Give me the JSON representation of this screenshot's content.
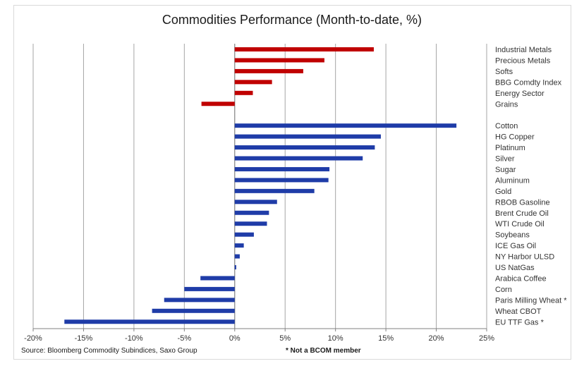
{
  "chart_data": {
    "type": "bar",
    "orientation": "horizontal",
    "title": "Commodities Performance (Month-to-date, %)",
    "xlim": [
      -20,
      25
    ],
    "x_ticks": [
      -20,
      -15,
      -10,
      -5,
      0,
      5,
      10,
      15,
      20,
      25
    ],
    "x_tick_labels": [
      "-20%",
      "-15%",
      "-10%",
      "-5%",
      "0%",
      "5%",
      "10%",
      "15%",
      "20%",
      "25%"
    ],
    "grid": "vertical",
    "groups": [
      {
        "color": "#c00000",
        "categories": [
          "Industrial Metals",
          "Precious Metals",
          "Softs",
          "BBG Comdty Index",
          "Energy Sector",
          "Grains"
        ],
        "values": [
          13.8,
          8.9,
          6.8,
          3.7,
          1.8,
          -3.3
        ]
      },
      {
        "color": "#1f3ca8",
        "categories": [
          "Cotton",
          "HG Copper",
          "Platinum",
          "Silver",
          "Sugar",
          "Aluminum",
          "Gold",
          "RBOB Gasoline",
          "Brent Crude Oil",
          "WTI Crude Oil",
          "Soybeans",
          "ICE Gas Oil",
          "NY Harbor ULSD",
          "US NatGas",
          "Arabica Coffee",
          "Corn",
          "Paris Milling Wheat *",
          "Wheat CBOT",
          "EU TTF Gas *"
        ],
        "values": [
          22.0,
          14.5,
          13.9,
          12.7,
          9.4,
          9.3,
          7.9,
          4.2,
          3.4,
          3.2,
          1.9,
          0.9,
          0.5,
          0.15,
          -3.4,
          -5.0,
          -7.0,
          -8.2,
          -16.9
        ]
      }
    ]
  },
  "footer": {
    "source": "Source: Bloomberg Commodity Subindices, Saxo Group",
    "note": "* Not a BCOM member"
  }
}
